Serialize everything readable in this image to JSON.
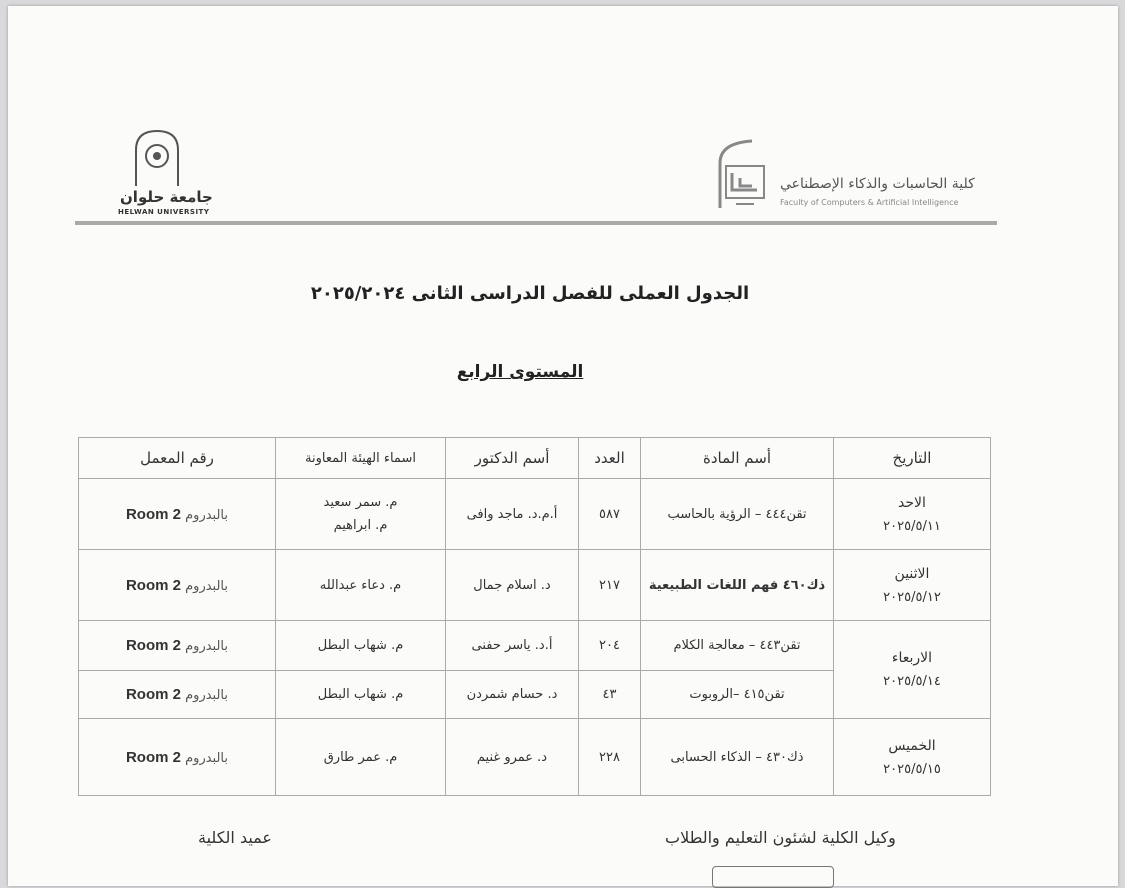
{
  "header": {
    "faculty_ar": "كلية الحاسبات والذكاء الإصطناعي",
    "faculty_en": "Faculty of Computers & Artificial Intelligence",
    "university_ar": "جامعة حلوان",
    "university_en": "HELWAN UNIVERSITY"
  },
  "title": "الجدول العملى للفصل الدراسى الثانى ٢٠٢٥/٢٠٢٤",
  "level": "المستوى الرابع",
  "table": {
    "headers": [
      "التاريخ",
      "أسم المادة",
      "العدد",
      "أسم الدكتور",
      "اسماء الهيئة المعاونة",
      "رقم المعمل"
    ],
    "rows": [
      {
        "day": "الاحد",
        "date": "٢٠٢٥/٥/١١",
        "subject": "تقن٤٤٤ – الرؤية بالحاسب",
        "count": "٥٨٧",
        "doctor": "أ.م.د. ماجد وافى",
        "ta1": "م. سمر سعيد",
        "ta2": "م. ابراهيم",
        "lab_room": "Room 2",
        "lab_place": "بالبدروم"
      },
      {
        "day": "الاثنين",
        "date": "٢٠٢٥/٥/١٢",
        "subject": "ذك٤٦٠ فهم اللغات الطبيعية",
        "count": "٢١٧",
        "doctor": "د. اسلام جمال",
        "ta1": "م. دعاء عبدالله",
        "lab_room": "Room 2",
        "lab_place": "بالبدروم"
      },
      {
        "day": "الاربعاء",
        "date": "٢٠٢٥/٥/١٤",
        "subject": "تقن٤٤٣ – معالجة الكلام",
        "count": "٢٠٤",
        "doctor": "أ.د. ياسر حفنى",
        "ta1": "م. شهاب البطل",
        "lab_room": "Room 2",
        "lab_place": "بالبدروم"
      },
      {
        "subject": "تقن٤١٥ –الروبوت",
        "count": "٤٣",
        "doctor": "د. حسام شمردن",
        "ta1": "م. شهاب البطل",
        "lab_room": "Room 2",
        "lab_place": "بالبدروم"
      },
      {
        "day": "الخميس",
        "date": "٢٠٢٥/٥/١٥",
        "subject": "ذك٤٣٠ – الذكاء الحسابى",
        "count": "٢٢٨",
        "doctor": "د. عمرو غنيم",
        "ta1": "م. عمر طارق",
        "lab_room": "Room 2",
        "lab_place": "بالبدروم"
      }
    ]
  },
  "signatures": {
    "vice_dean": "وكيل الكلية لشئون التعليم والطلاب",
    "dean": "عميد الكلية"
  }
}
